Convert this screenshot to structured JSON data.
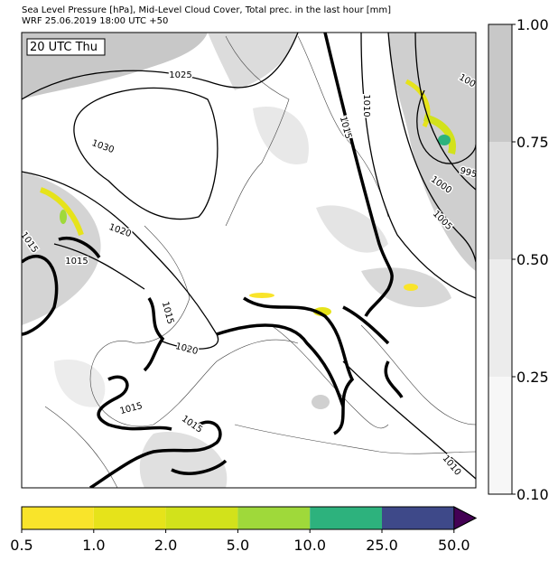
{
  "header": {
    "line1": "Sea Level Pressure [hPa], Mid-Level Cloud Cover, Total prec. in the last hour [mm]",
    "line2": "WRF 25.06.2019 18:00 UTC +50"
  },
  "map": {
    "time_label": "20 UTC Thu",
    "contour_labels": [
      "1025",
      "1030",
      "1020",
      "1015",
      "1015",
      "1015",
      "1020",
      "1015",
      "1015",
      "1015",
      "1010",
      "1000",
      "995",
      "1005",
      "1010",
      "100"
    ]
  },
  "cloud_colorbar": {
    "ticks": [
      "1.00",
      "0.75",
      "0.50",
      "0.25",
      "0.10"
    ]
  },
  "precip_colorbar": {
    "ticks": [
      "0.5",
      "1.0",
      "2.0",
      "5.0",
      "10.0",
      "25.0",
      "50.0"
    ]
  }
}
